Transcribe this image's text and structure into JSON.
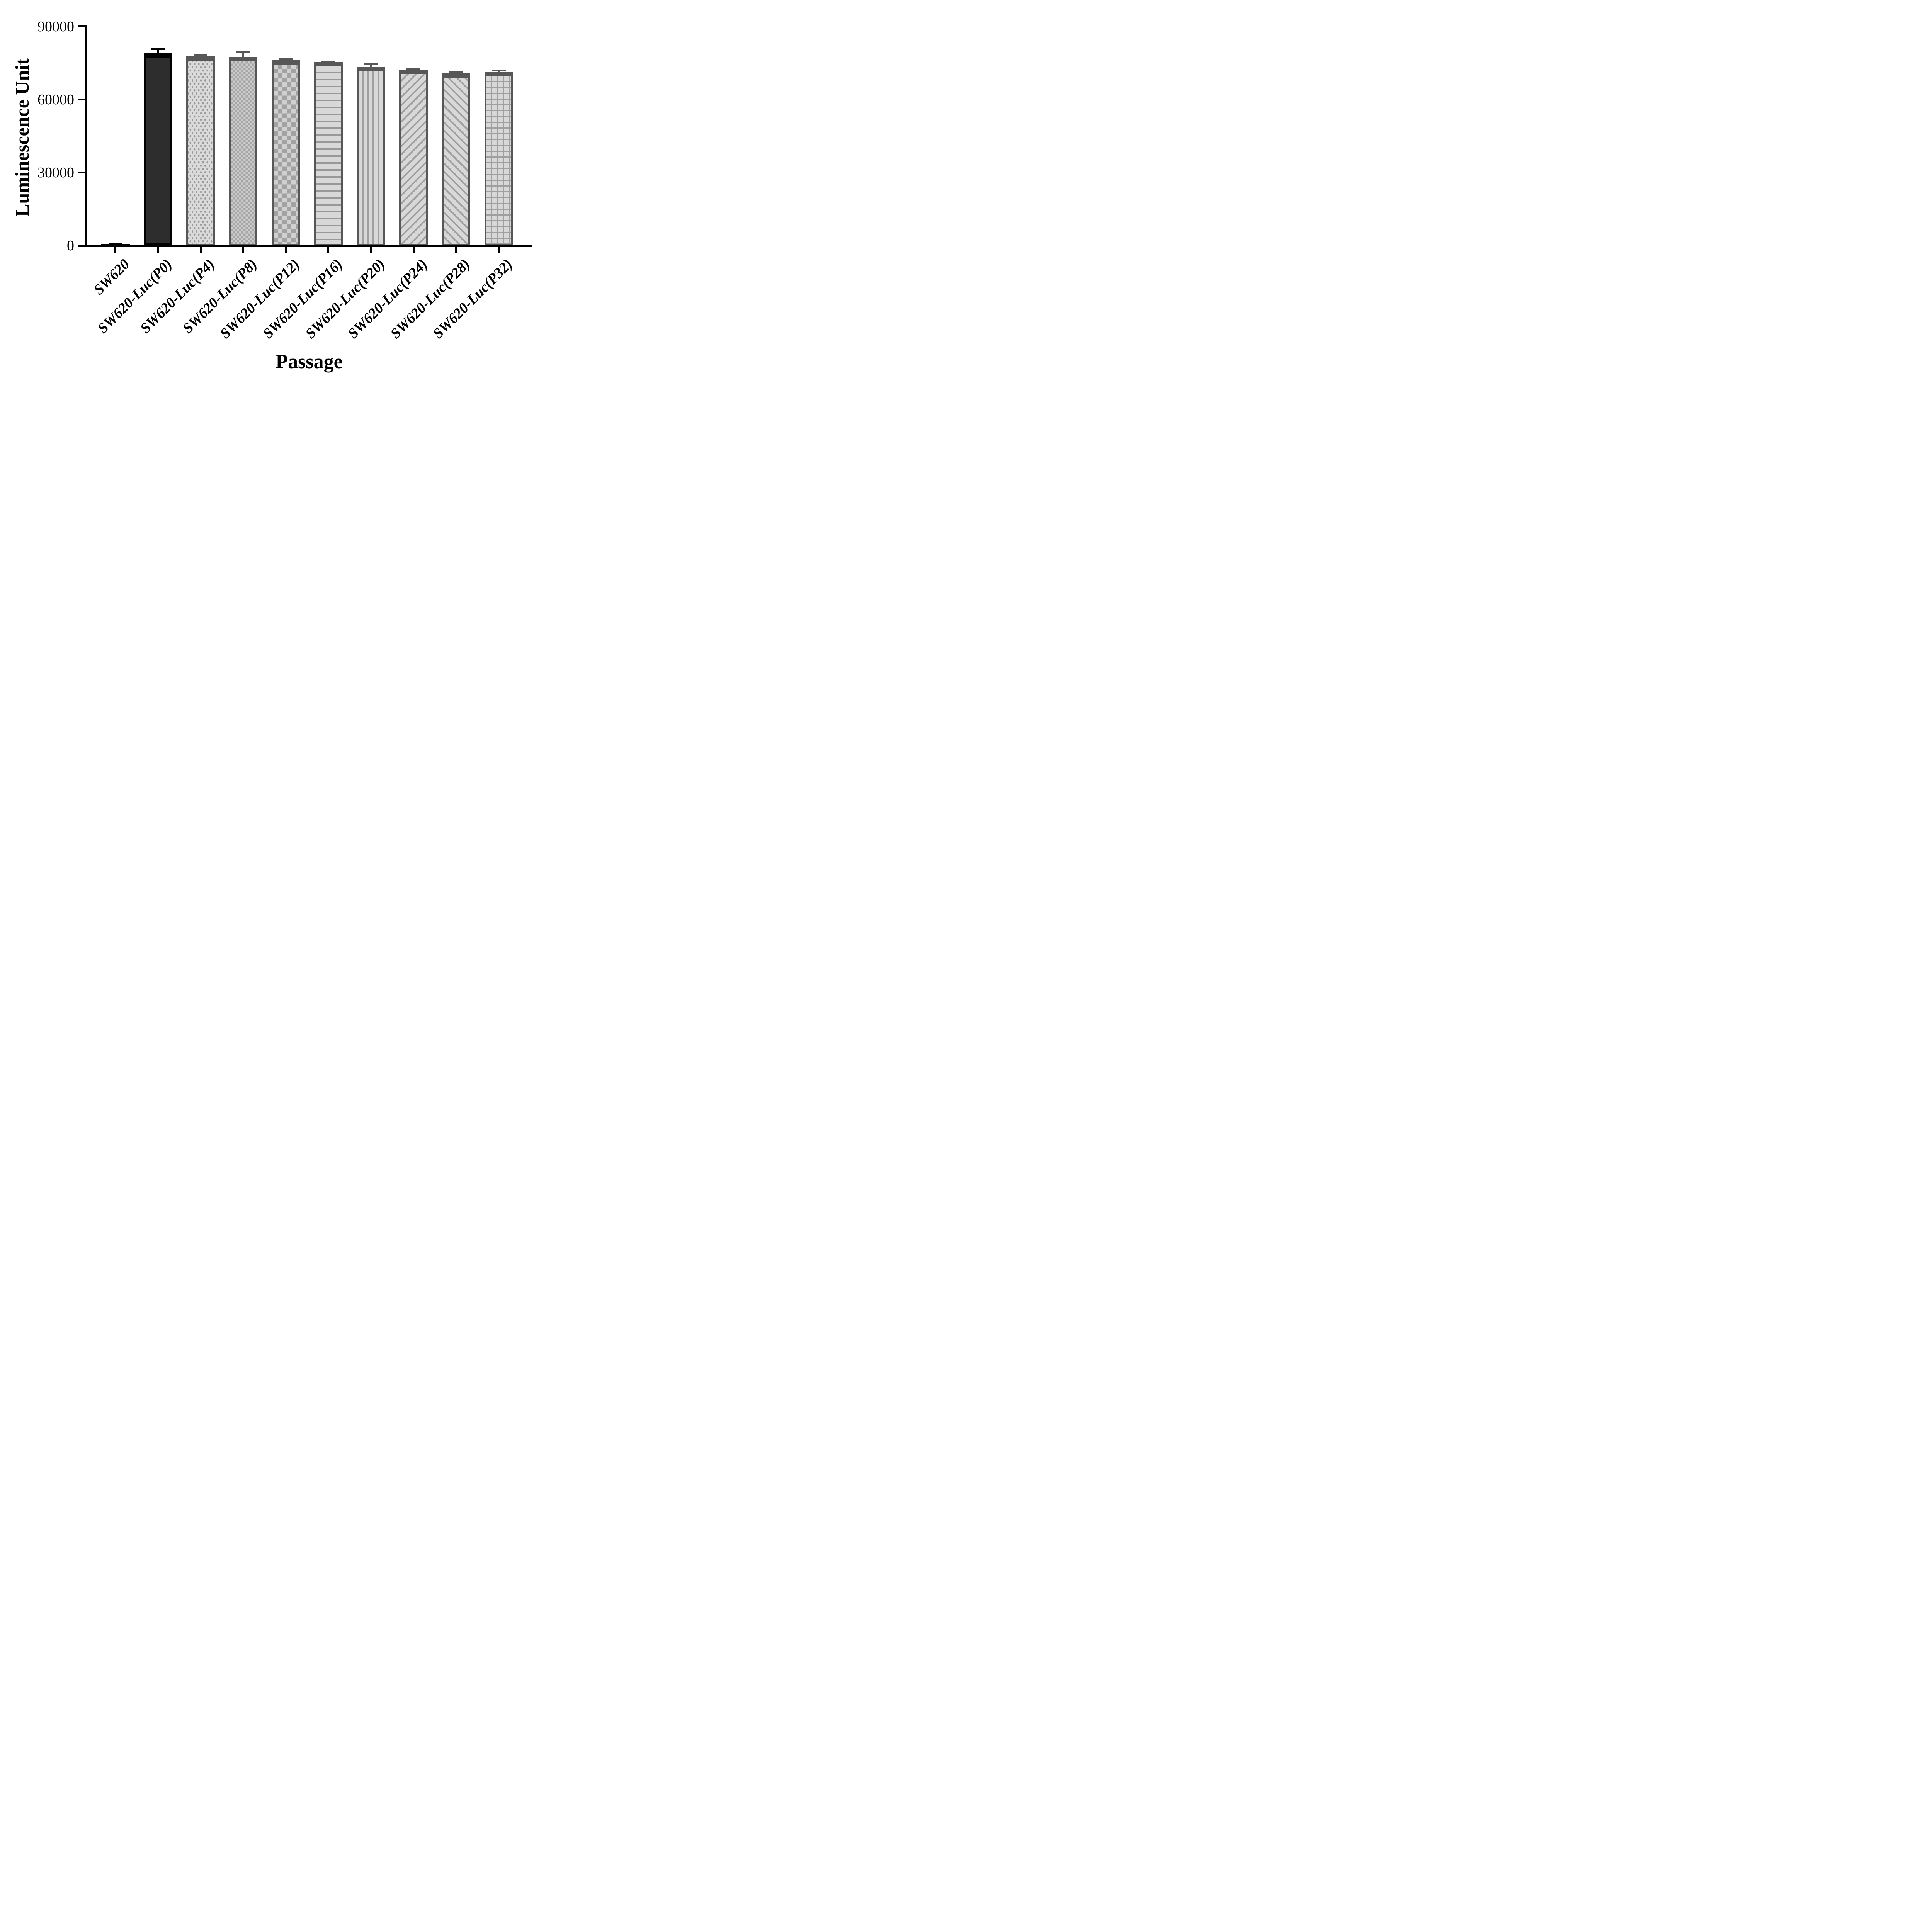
{
  "chart_data": {
    "type": "bar",
    "title": "",
    "xlabel": "Passage",
    "ylabel": "Luminescence Unit",
    "categories": [
      "SW620",
      "SW620-Luc(P0)",
      "SW620-Luc(P4)",
      "SW620-Luc(P8)",
      "SW620-Luc(P12)",
      "SW620-Luc(P16)",
      "SW620-Luc(P20)",
      "SW620-Luc(P24)",
      "SW620-Luc(P28)",
      "SW620-Luc(P32)"
    ],
    "values": [
      700,
      79300,
      77800,
      77400,
      76100,
      75400,
      73500,
      72300,
      70800,
      71300
    ],
    "errors": [
      250,
      1800,
      1000,
      2400,
      950,
      500,
      1550,
      600,
      850,
      1100
    ],
    "error_direction": "up",
    "ylim": [
      0,
      90000
    ],
    "yticks": [
      0,
      30000,
      60000,
      90000
    ],
    "y_tick_labels": [
      "0",
      "30000",
      "60000",
      "90000"
    ],
    "bar_patterns": [
      "solid-black",
      "solid-dark",
      "dots",
      "checker-small",
      "checker-large",
      "hlines",
      "vlines",
      "diag-up",
      "diag-down",
      "grid"
    ],
    "grid": false,
    "legend_position": "none"
  },
  "colors": {
    "axis": "#000000",
    "text": "#000000",
    "bar_border": "#575757",
    "bar_fill_light": "#d8d8d8",
    "bar_pattern": "#9f9f9f",
    "bar_fill_dark": "#2d2d2d",
    "first_bar": "#000000"
  }
}
